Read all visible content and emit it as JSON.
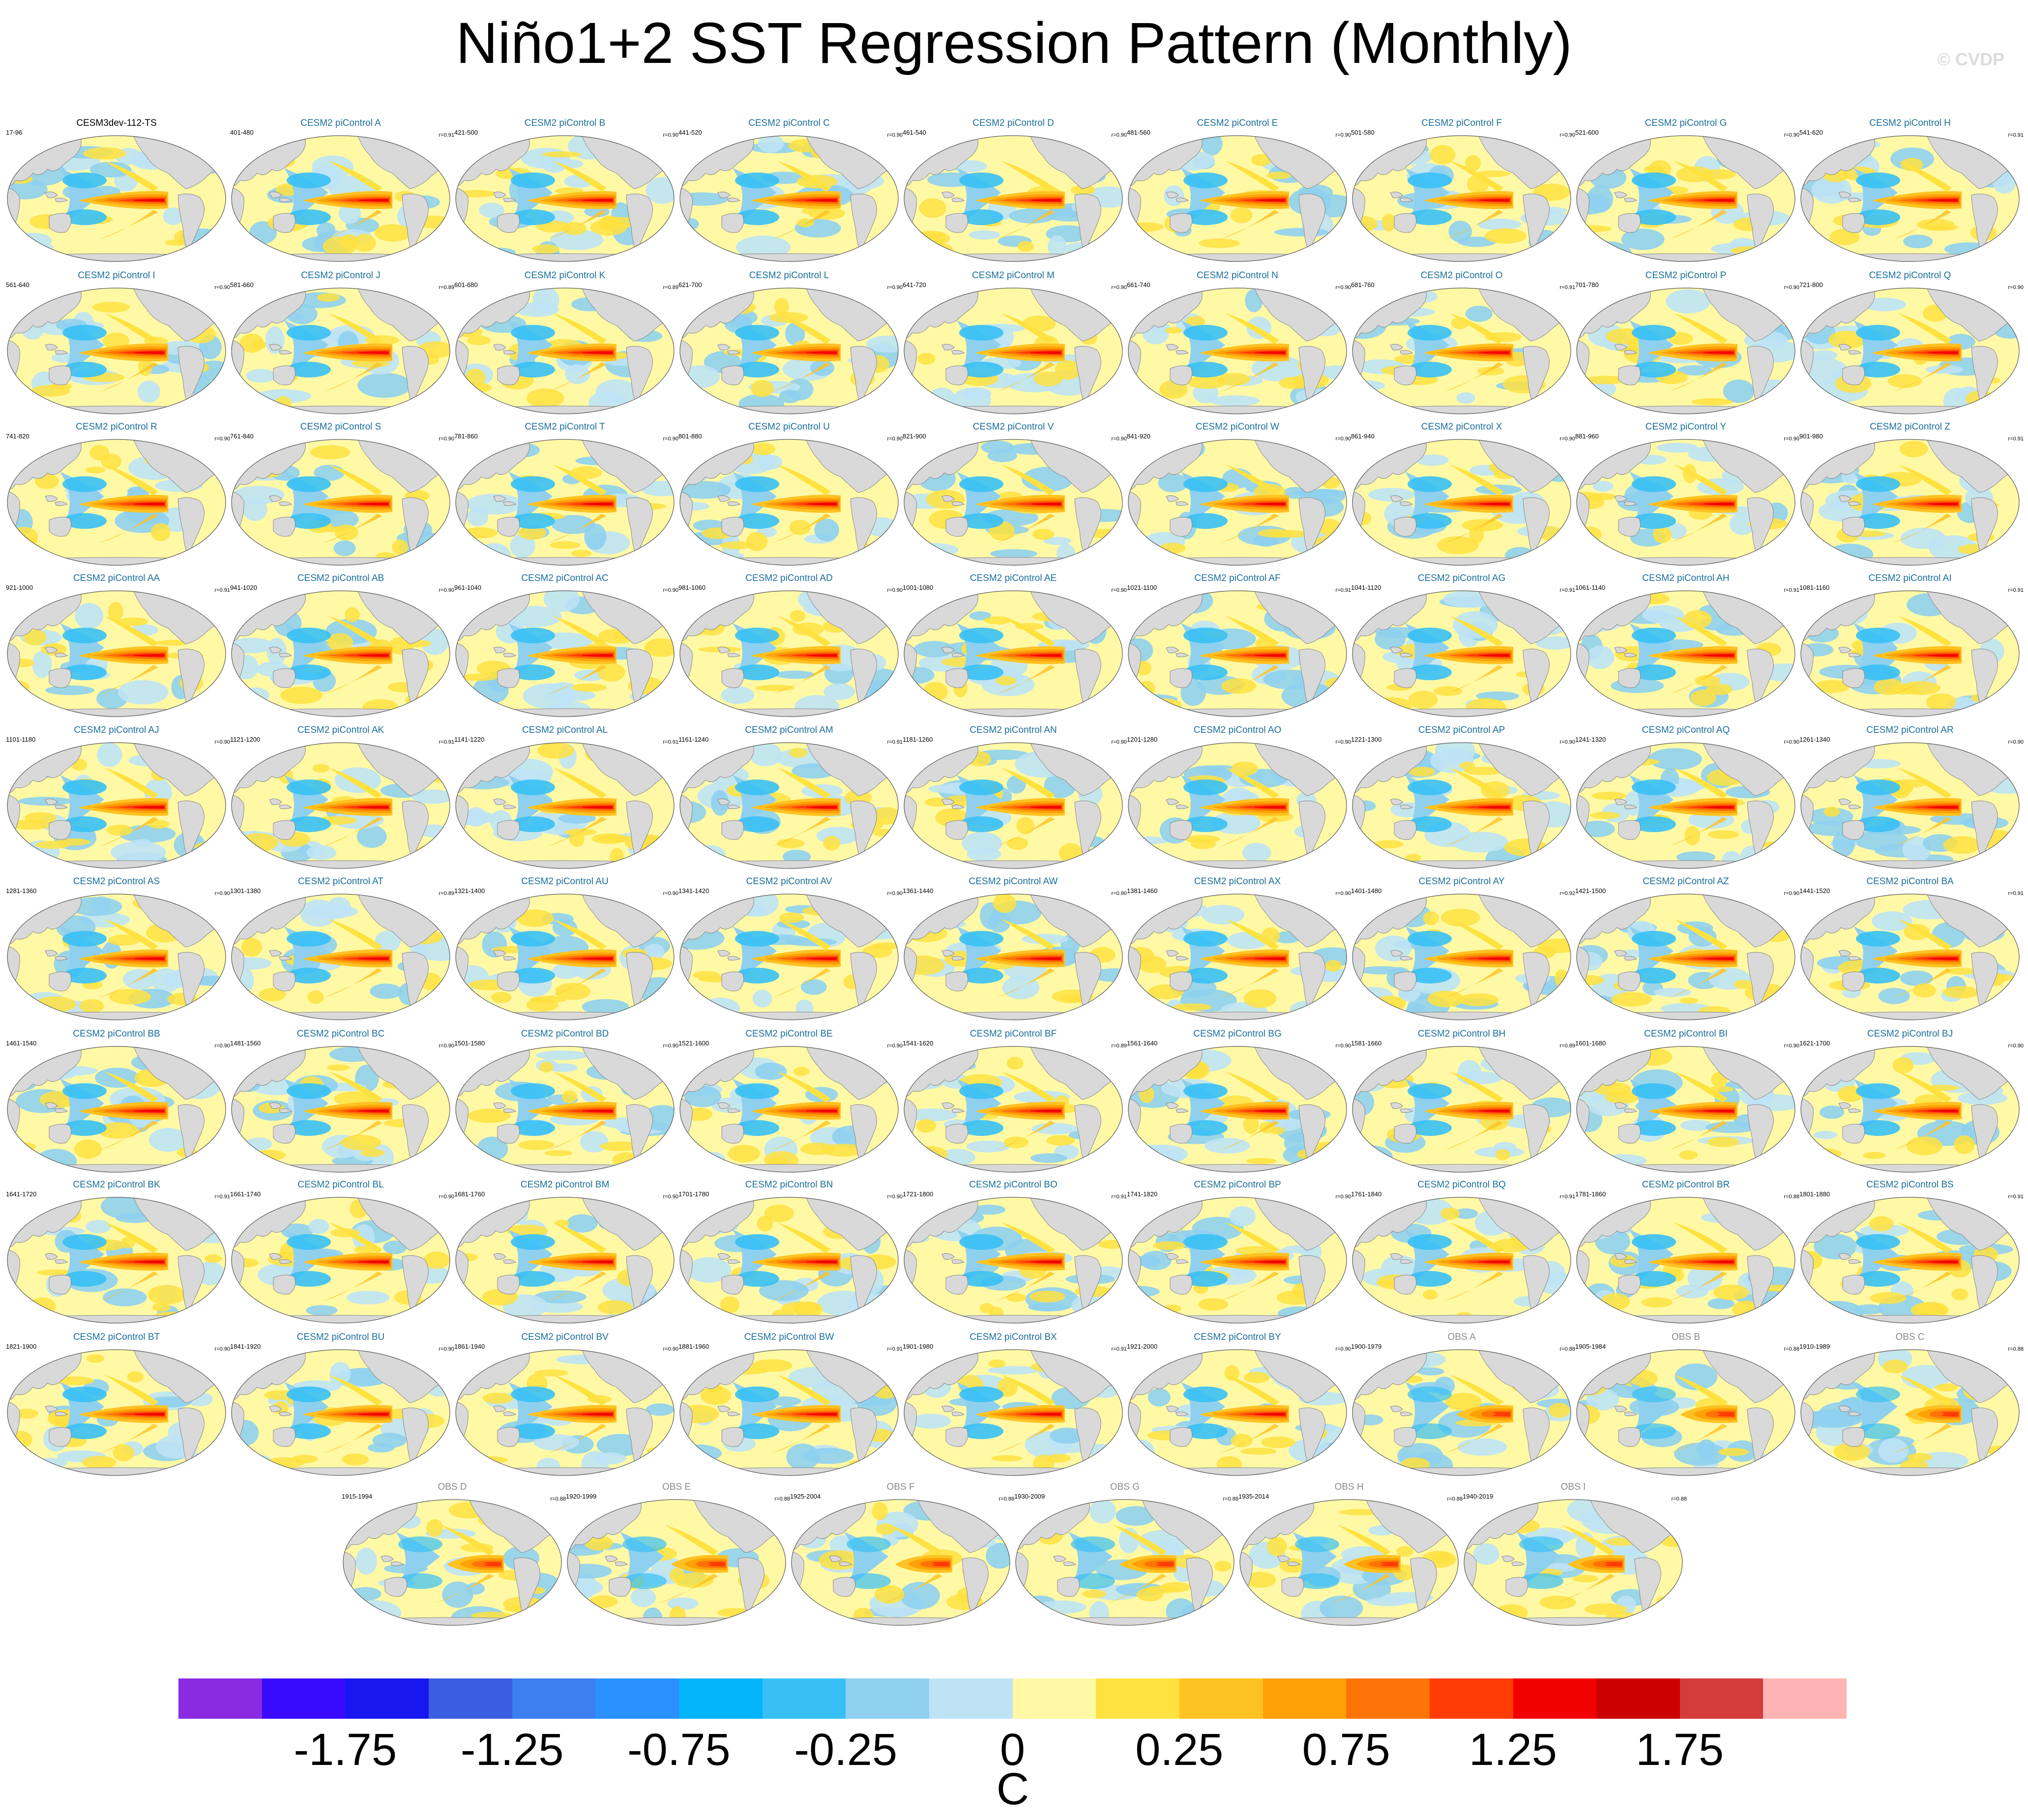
{
  "title": "Niño1+2 SST Regression Pattern (Monthly)",
  "watermark": "© CVDP",
  "colors": {
    "land": "#d9d9d9",
    "coast": "#888888",
    "model_title": "#1a6f9a",
    "obs_title": "#8a8a8a"
  },
  "panels": [
    {
      "title": "CESM3dev-112-TS",
      "range": "17-96",
      "corr": "",
      "kind": "model"
    },
    {
      "title": "CESM2 piControl A",
      "range": "401-480",
      "corr": "r=0.91",
      "kind": "ens"
    },
    {
      "title": "CESM2 piControl B",
      "range": "421-500",
      "corr": "r=0.90",
      "kind": "ens"
    },
    {
      "title": "CESM2 piControl C",
      "range": "441-520",
      "corr": "r=0.90",
      "kind": "ens"
    },
    {
      "title": "CESM2 piControl D",
      "range": "461-540",
      "corr": "r=0.90",
      "kind": "ens"
    },
    {
      "title": "CESM2 piControl E",
      "range": "481-560",
      "corr": "r=0.90",
      "kind": "ens"
    },
    {
      "title": "CESM2 piControl F",
      "range": "501-580",
      "corr": "r=0.90",
      "kind": "ens"
    },
    {
      "title": "CESM2 piControl G",
      "range": "521-600",
      "corr": "r=0.90",
      "kind": "ens"
    },
    {
      "title": "CESM2 piControl H",
      "range": "541-620",
      "corr": "r=0.91",
      "kind": "ens"
    },
    {
      "title": "CESM2 piControl I",
      "range": "561-640",
      "corr": "r=0.90",
      "kind": "ens"
    },
    {
      "title": "CESM2 piControl J",
      "range": "581-660",
      "corr": "r=0.89",
      "kind": "ens"
    },
    {
      "title": "CESM2 piControl K",
      "range": "601-680",
      "corr": "r=0.89",
      "kind": "ens"
    },
    {
      "title": "CESM2 piControl L",
      "range": "621-700",
      "corr": "r=0.90",
      "kind": "ens"
    },
    {
      "title": "CESM2 piControl M",
      "range": "641-720",
      "corr": "r=0.90",
      "kind": "ens"
    },
    {
      "title": "CESM2 piControl N",
      "range": "661-740",
      "corr": "r=0.90",
      "kind": "ens"
    },
    {
      "title": "CESM2 piControl O",
      "range": "681-760",
      "corr": "r=0.91",
      "kind": "ens"
    },
    {
      "title": "CESM2 piControl P",
      "range": "701-780",
      "corr": "r=0.90",
      "kind": "ens"
    },
    {
      "title": "CESM2 piControl Q",
      "range": "721-800",
      "corr": "r=0.90",
      "kind": "ens"
    },
    {
      "title": "CESM2 piControl R",
      "range": "741-820",
      "corr": "r=0.90",
      "kind": "ens"
    },
    {
      "title": "CESM2 piControl S",
      "range": "761-840",
      "corr": "r=0.90",
      "kind": "ens"
    },
    {
      "title": "CESM2 piControl T",
      "range": "781-860",
      "corr": "r=0.90",
      "kind": "ens"
    },
    {
      "title": "CESM2 piControl U",
      "range": "801-880",
      "corr": "r=0.90",
      "kind": "ens"
    },
    {
      "title": "CESM2 piControl V",
      "range": "821-900",
      "corr": "r=0.90",
      "kind": "ens"
    },
    {
      "title": "CESM2 piControl W",
      "range": "841-920",
      "corr": "r=0.90",
      "kind": "ens"
    },
    {
      "title": "CESM2 piControl X",
      "range": "861-940",
      "corr": "r=0.90",
      "kind": "ens"
    },
    {
      "title": "CESM2 piControl Y",
      "range": "881-960",
      "corr": "r=0.90",
      "kind": "ens"
    },
    {
      "title": "CESM2 piControl Z",
      "range": "901-980",
      "corr": "r=0.91",
      "kind": "ens"
    },
    {
      "title": "CESM2 piControl AA",
      "range": "921-1000",
      "corr": "r=0.91",
      "kind": "ens"
    },
    {
      "title": "CESM2 piControl AB",
      "range": "941-1020",
      "corr": "r=0.90",
      "kind": "ens"
    },
    {
      "title": "CESM2 piControl AC",
      "range": "961-1040",
      "corr": "r=0.90",
      "kind": "ens"
    },
    {
      "title": "CESM2 piControl AD",
      "range": "981-1060",
      "corr": "r=0.90",
      "kind": "ens"
    },
    {
      "title": "CESM2 piControl AE",
      "range": "1001-1080",
      "corr": "r=0.90",
      "kind": "ens"
    },
    {
      "title": "CESM2 piControl AF",
      "range": "1021-1100",
      "corr": "r=0.91",
      "kind": "ens"
    },
    {
      "title": "CESM2 piControl AG",
      "range": "1041-1120",
      "corr": "r=0.91",
      "kind": "ens"
    },
    {
      "title": "CESM2 piControl AH",
      "range": "1061-1140",
      "corr": "r=0.91",
      "kind": "ens"
    },
    {
      "title": "CESM2 piControl AI",
      "range": "1081-1160",
      "corr": "r=0.91",
      "kind": "ens"
    },
    {
      "title": "CESM2 piControl AJ",
      "range": "1101-1180",
      "corr": "r=0.90",
      "kind": "ens"
    },
    {
      "title": "CESM2 piControl AK",
      "range": "1121-1200",
      "corr": "r=0.91",
      "kind": "ens"
    },
    {
      "title": "CESM2 piControl AL",
      "range": "1141-1220",
      "corr": "r=0.91",
      "kind": "ens"
    },
    {
      "title": "CESM2 piControl AM",
      "range": "1161-1240",
      "corr": "r=0.91",
      "kind": "ens"
    },
    {
      "title": "CESM2 piControl AN",
      "range": "1181-1260",
      "corr": "r=0.90",
      "kind": "ens"
    },
    {
      "title": "CESM2 piControl AO",
      "range": "1201-1280",
      "corr": "r=0.90",
      "kind": "ens"
    },
    {
      "title": "CESM2 piControl AP",
      "range": "1221-1300",
      "corr": "r=0.90",
      "kind": "ens"
    },
    {
      "title": "CESM2 piControl AQ",
      "range": "1241-1320",
      "corr": "r=0.90",
      "kind": "ens"
    },
    {
      "title": "CESM2 piControl AR",
      "range": "1261-1340",
      "corr": "r=0.90",
      "kind": "ens"
    },
    {
      "title": "CESM2 piControl AS",
      "range": "1281-1360",
      "corr": "r=0.90",
      "kind": "ens"
    },
    {
      "title": "CESM2 piControl AT",
      "range": "1301-1380",
      "corr": "r=0.89",
      "kind": "ens"
    },
    {
      "title": "CESM2 piControl AU",
      "range": "1321-1400",
      "corr": "r=0.90",
      "kind": "ens"
    },
    {
      "title": "CESM2 piControl AV",
      "range": "1341-1420",
      "corr": "r=0.90",
      "kind": "ens"
    },
    {
      "title": "CESM2 piControl AW",
      "range": "1361-1440",
      "corr": "r=0.90",
      "kind": "ens"
    },
    {
      "title": "CESM2 piControl AX",
      "range": "1381-1460",
      "corr": "r=0.90",
      "kind": "ens"
    },
    {
      "title": "CESM2 piControl AY",
      "range": "1401-1480",
      "corr": "r=0.92",
      "kind": "ens"
    },
    {
      "title": "CESM2 piControl AZ",
      "range": "1421-1500",
      "corr": "r=0.90",
      "kind": "ens"
    },
    {
      "title": "CESM2 piControl BA",
      "range": "1441-1520",
      "corr": "r=0.91",
      "kind": "ens"
    },
    {
      "title": "CESM2 piControl BB",
      "range": "1461-1540",
      "corr": "r=0.90",
      "kind": "ens"
    },
    {
      "title": "CESM2 piControl BC",
      "range": "1481-1560",
      "corr": "r=0.90",
      "kind": "ens"
    },
    {
      "title": "CESM2 piControl BD",
      "range": "1501-1580",
      "corr": "r=0.90",
      "kind": "ens"
    },
    {
      "title": "CESM2 piControl BE",
      "range": "1521-1600",
      "corr": "r=0.90",
      "kind": "ens"
    },
    {
      "title": "CESM2 piControl BF",
      "range": "1541-1620",
      "corr": "r=0.89",
      "kind": "ens"
    },
    {
      "title": "CESM2 piControl BG",
      "range": "1561-1640",
      "corr": "r=0.90",
      "kind": "ens"
    },
    {
      "title": "CESM2 piControl BH",
      "range": "1581-1660",
      "corr": "r=0.89",
      "kind": "ens"
    },
    {
      "title": "CESM2 piControl BI",
      "range": "1601-1680",
      "corr": "r=0.90",
      "kind": "ens"
    },
    {
      "title": "CESM2 piControl BJ",
      "range": "1621-1700",
      "corr": "r=0.90",
      "kind": "ens"
    },
    {
      "title": "CESM2 piControl BK",
      "range": "1641-1720",
      "corr": "r=0.91",
      "kind": "ens"
    },
    {
      "title": "CESM2 piControl BL",
      "range": "1661-1740",
      "corr": "r=0.90",
      "kind": "ens"
    },
    {
      "title": "CESM2 piControl BM",
      "range": "1681-1760",
      "corr": "r=0.90",
      "kind": "ens"
    },
    {
      "title": "CESM2 piControl BN",
      "range": "1701-1780",
      "corr": "r=0.90",
      "kind": "ens"
    },
    {
      "title": "CESM2 piControl BO",
      "range": "1721-1800",
      "corr": "r=0.91",
      "kind": "ens"
    },
    {
      "title": "CESM2 piControl BP",
      "range": "1741-1820",
      "corr": "r=0.90",
      "kind": "ens"
    },
    {
      "title": "CESM2 piControl BQ",
      "range": "1761-1840",
      "corr": "r=0.91",
      "kind": "ens"
    },
    {
      "title": "CESM2 piControl BR",
      "range": "1781-1860",
      "corr": "r=0.88",
      "kind": "ens"
    },
    {
      "title": "CESM2 piControl BS",
      "range": "1801-1880",
      "corr": "r=0.91",
      "kind": "ens"
    },
    {
      "title": "CESM2 piControl BT",
      "range": "1821-1900",
      "corr": "r=0.90",
      "kind": "ens"
    },
    {
      "title": "CESM2 piControl BU",
      "range": "1841-1920",
      "corr": "r=0.90",
      "kind": "ens"
    },
    {
      "title": "CESM2 piControl BV",
      "range": "1861-1940",
      "corr": "r=0.90",
      "kind": "ens"
    },
    {
      "title": "CESM2 piControl BW",
      "range": "1881-1960",
      "corr": "r=0.91",
      "kind": "ens"
    },
    {
      "title": "CESM2 piControl BX",
      "range": "1901-1980",
      "corr": "r=0.91",
      "kind": "ens"
    },
    {
      "title": "CESM2 piControl BY",
      "range": "1921-2000",
      "corr": "r=0.90",
      "kind": "ens"
    },
    {
      "title": "OBS A",
      "range": "1900-1979",
      "corr": "r=0.88",
      "kind": "obs"
    },
    {
      "title": "OBS B",
      "range": "1905-1984",
      "corr": "r=0.88",
      "kind": "obs"
    },
    {
      "title": "OBS C",
      "range": "1910-1989",
      "corr": "r=0.88",
      "kind": "obs"
    },
    {
      "title": "OBS D",
      "range": "1915-1994",
      "corr": "r=0.88",
      "kind": "obs"
    },
    {
      "title": "OBS E",
      "range": "1920-1999",
      "corr": "r=0.88",
      "kind": "obs"
    },
    {
      "title": "OBS F",
      "range": "1925-2004",
      "corr": "r=0.88",
      "kind": "obs"
    },
    {
      "title": "OBS G",
      "range": "1930-2009",
      "corr": "r=0.88",
      "kind": "obs"
    },
    {
      "title": "OBS H",
      "range": "1935-2014",
      "corr": "r=0.88",
      "kind": "obs"
    },
    {
      "title": "OBS I",
      "range": "1940-2019",
      "corr": "r=0.88",
      "kind": "obs"
    }
  ],
  "colorbar": {
    "colors": [
      "#8a2be2",
      "#3a0aff",
      "#1818ee",
      "#3b5ee0",
      "#3c7ff0",
      "#2a90ff",
      "#04b5fb",
      "#38c0f5",
      "#8fd0ef",
      "#bee3f5",
      "#fff9a6",
      "#ffe23f",
      "#ffc222",
      "#ffa106",
      "#ff7406",
      "#ff3c06",
      "#f20000",
      "#cc0000",
      "#d43c3c",
      "#ffb4b4"
    ],
    "labels": [
      "-1.75",
      "-1.25",
      "-0.75",
      "-0.25",
      "0",
      "0.25",
      "0.75",
      "1.25",
      "1.75"
    ],
    "unit": "C"
  }
}
